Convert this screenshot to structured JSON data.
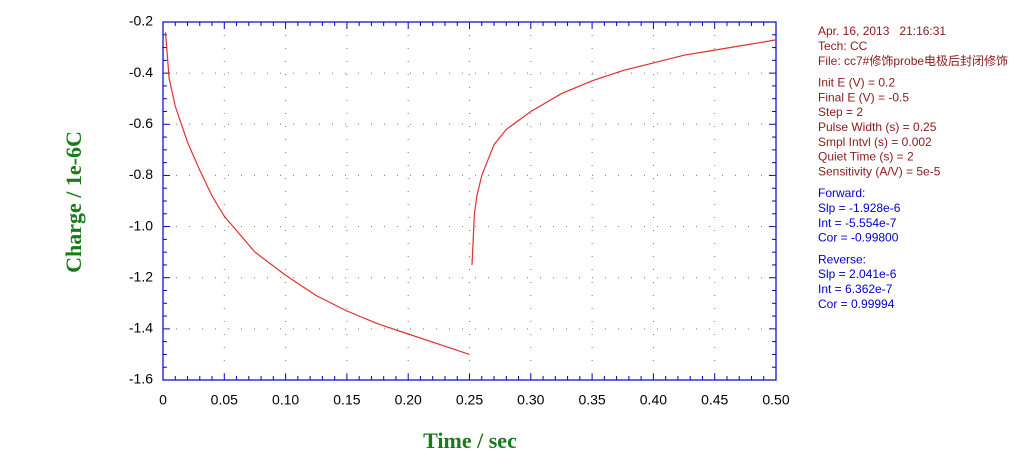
{
  "chart_data": {
    "type": "line",
    "xlabel": "Time / sec",
    "ylabel": "Charge / 1e-6C",
    "xlim": [
      0,
      0.5
    ],
    "ylim": [
      -1.6,
      -0.2
    ],
    "xticks": [
      0,
      0.05,
      {
        "value": 0.1,
        "label": "0.10"
      },
      0.15,
      {
        "value": 0.2,
        "label": "0.20"
      },
      0.25,
      {
        "value": 0.3,
        "label": "0.30"
      },
      0.35,
      {
        "value": 0.4,
        "label": "0.40"
      },
      0.45,
      {
        "value": 0.5,
        "label": "0.50"
      }
    ],
    "yticks": [
      -1.6,
      -1.4,
      -1.2,
      {
        "value": -1.0,
        "label": "-1.0"
      },
      -0.8,
      -0.6,
      -0.4,
      -0.2
    ],
    "grid": true,
    "axis_color": "#0000cc",
    "label_color": "#1a7a1a",
    "series": [
      {
        "color": "#e03030",
        "x": [
          0.002,
          0.005,
          0.01,
          0.02,
          0.03,
          0.04,
          0.05,
          0.075,
          0.1,
          0.125,
          0.15,
          0.175,
          0.2,
          0.225,
          0.25
        ],
        "values": [
          -0.24,
          -0.42,
          -0.53,
          -0.67,
          -0.78,
          -0.88,
          -0.96,
          -1.1,
          -1.19,
          -1.27,
          -1.33,
          -1.38,
          -1.42,
          -1.46,
          -1.5
        ]
      },
      {
        "color": "#e03030",
        "x": [
          0.252,
          0.254,
          0.256,
          0.26,
          0.27,
          0.28,
          0.3,
          0.325,
          0.35,
          0.375,
          0.4,
          0.425,
          0.45,
          0.475,
          0.5
        ],
        "values": [
          -1.15,
          -0.95,
          -0.88,
          -0.8,
          -0.68,
          -0.62,
          -0.55,
          -0.48,
          -0.43,
          -0.39,
          -0.36,
          -0.33,
          -0.31,
          -0.29,
          -0.27
        ]
      }
    ],
    "annotation_groups": [
      {
        "color": "#8b1a1a",
        "lines": [
          "Apr. 16, 2013   21:16:31",
          "Tech: CC",
          "File: cc7#修饰probe电极后封闭修饰"
        ]
      },
      {
        "color": "#8b1a1a",
        "lines": [
          "Init E (V) = 0.2",
          "Final E (V) = -0.5",
          "Step = 2",
          "Pulse Width (s) = 0.25",
          "Smpl Intvl (s) = 0.002",
          "Quiet Time (s) = 2",
          "Sensitivity (A/V) = 5e-5"
        ]
      },
      {
        "color": "#0000cc",
        "lines": [
          "Forward:",
          "Slp = -1.928e-6",
          "Int = -5.554e-7",
          "Cor = -0.99800"
        ]
      },
      {
        "color": "#0000cc",
        "lines": [
          "Reverse:",
          "Slp = 2.041e-6",
          "Int = 6.362e-7",
          "Cor = 0.99994"
        ]
      }
    ]
  }
}
